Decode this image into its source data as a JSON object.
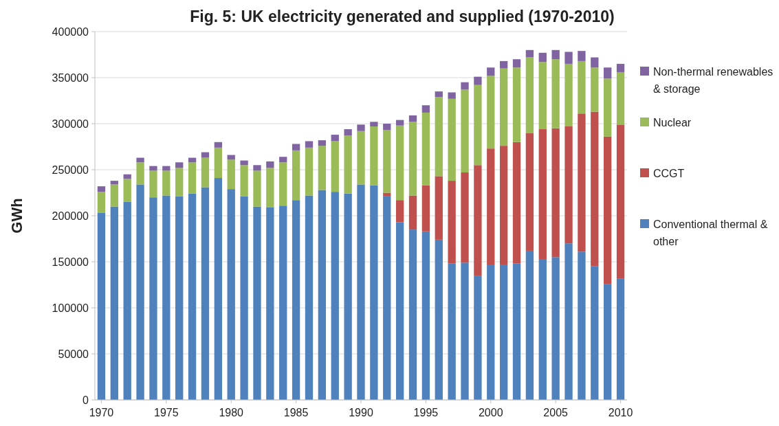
{
  "chart_data": {
    "type": "bar",
    "title": "Fig. 5: UK electricity generated and supplied (1970-2010)",
    "ylabel": "GWh",
    "stacked": true,
    "legend": "right",
    "grid": "y",
    "x": [
      1970,
      1971,
      1972,
      1973,
      1974,
      1975,
      1976,
      1977,
      1978,
      1979,
      1980,
      1981,
      1982,
      1983,
      1984,
      1985,
      1986,
      1987,
      1988,
      1989,
      1990,
      1991,
      1992,
      1993,
      1994,
      1995,
      1996,
      1997,
      1998,
      1999,
      2000,
      2001,
      2002,
      2003,
      2004,
      2005,
      2006,
      2007,
      2008,
      2009,
      2010
    ],
    "xlim": [
      1969.5,
      2010.5
    ],
    "xticks": [
      1970,
      1975,
      1980,
      1985,
      1990,
      1995,
      2000,
      2005,
      2010
    ],
    "ylim": [
      0,
      400000
    ],
    "yticks": [
      0,
      50000,
      100000,
      150000,
      200000,
      250000,
      300000,
      350000,
      400000
    ],
    "series": [
      {
        "name": "Conventional thermal & other",
        "color": "#4f81bd",
        "values": [
          203000,
          210000,
          215000,
          234000,
          220000,
          222000,
          221000,
          224000,
          231000,
          241000,
          229000,
          221000,
          210000,
          209000,
          211000,
          217000,
          222000,
          228000,
          226000,
          224000,
          234000,
          233000,
          221000,
          193000,
          185000,
          183000,
          174000,
          148000,
          149000,
          135000,
          147000,
          147000,
          148000,
          162000,
          153000,
          155000,
          170000,
          161000,
          145000,
          126000,
          132000
        ]
      },
      {
        "name": "CCGT",
        "color": "#c0504d",
        "values": [
          0,
          0,
          0,
          0,
          0,
          0,
          0,
          0,
          0,
          0,
          0,
          0,
          0,
          0,
          0,
          0,
          0,
          0,
          0,
          0,
          0,
          0,
          4000,
          24000,
          37000,
          50000,
          69000,
          90000,
          98000,
          120000,
          126000,
          129000,
          132000,
          128000,
          141000,
          140000,
          127000,
          150000,
          168000,
          160000,
          167000
        ]
      },
      {
        "name": "Nuclear",
        "color": "#9bbb59",
        "values": [
          23000,
          24000,
          25000,
          24000,
          29000,
          27000,
          31000,
          34000,
          32000,
          33000,
          32000,
          34000,
          39000,
          43000,
          47000,
          54000,
          52000,
          48000,
          55000,
          63000,
          58000,
          64000,
          68000,
          81000,
          80000,
          79000,
          86000,
          89000,
          90000,
          87000,
          79000,
          84000,
          81000,
          82000,
          73000,
          75000,
          68000,
          57000,
          48000,
          63000,
          57000
        ]
      },
      {
        "name": "Non-thermal renewables & storage",
        "color": "#8064a2",
        "values": [
          6000,
          4000,
          5000,
          5000,
          5000,
          5000,
          6000,
          5000,
          6000,
          6000,
          5000,
          5000,
          6000,
          7000,
          6000,
          7000,
          7000,
          6000,
          7000,
          7000,
          7000,
          5000,
          7000,
          6000,
          7000,
          8000,
          6000,
          7000,
          8000,
          9000,
          9000,
          8000,
          9000,
          8000,
          10000,
          10000,
          13000,
          11000,
          11000,
          12000,
          9000
        ]
      }
    ]
  }
}
